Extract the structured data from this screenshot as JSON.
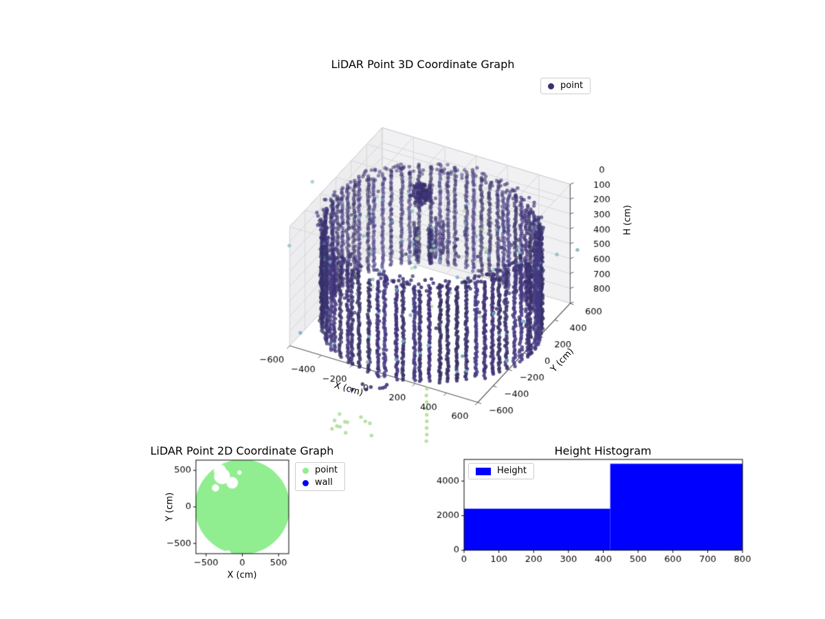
{
  "chart_data": [
    {
      "type": "scatter3d",
      "title": "LiDAR Point 3D Coordinate Graph",
      "xlabel": "X (cm)",
      "ylabel": "Y (cm)",
      "zlabel": "H (cm)",
      "xticks": [
        -600,
        -400,
        -200,
        0,
        200,
        400,
        600
      ],
      "yticks": [
        -600,
        -400,
        -200,
        0,
        200,
        400,
        600
      ],
      "zticks": [
        0,
        100,
        200,
        300,
        400,
        500,
        600,
        700,
        800
      ],
      "xlim": [
        -700,
        700
      ],
      "ylim": [
        -700,
        700
      ],
      "zlim": [
        800,
        0
      ],
      "z_axis_inverted": true,
      "legend": [
        {
          "label": "point",
          "color": "#3d2f75"
        }
      ],
      "point_cloud": {
        "description": "cylindrical LiDAR room scan, dense wall columns radius ~630 cm, heights 130-800 cm",
        "colors": {
          "dark": [
            "#3e2f77",
            "#39336e",
            "#443a82",
            "#353064"
          ],
          "teal": "#6fa8b8",
          "green": "#b5dfa0"
        },
        "wall": {
          "columns": 74,
          "radius": 627,
          "radius_wobble": 16,
          "h_top_min": 130,
          "h_top_jitter": 60,
          "h_bottom": 800,
          "h_step_min": 9,
          "h_step_max": 16,
          "xy_jitter": 7
        },
        "rim": {
          "count": 240,
          "r_min": 585,
          "r_max": 655,
          "h_min": 115,
          "h_max": 170
        },
        "cluster": {
          "cx": -240,
          "cy": 390,
          "sigma": 55,
          "count": 170,
          "h_min": 150,
          "h_max": 270
        },
        "interior_columns": {
          "count": 7,
          "x_min": -120,
          "x_max": 20,
          "y_min": 0,
          "y_max": 160,
          "h_start_min": 150,
          "h_start_max": 210,
          "h_end_min": 370,
          "h_end_max": 450,
          "h_step": 13
        },
        "sparse": {
          "count": 80,
          "r_max": 560,
          "h_min": 140,
          "h_max": 560
        },
        "teal_outliers": {
          "count": 20,
          "xy_min": -880,
          "xy_max": 880,
          "h_min": 100,
          "h_max": 650
        },
        "green_front": {
          "count": 12,
          "x_min": -60,
          "x_max": 230,
          "y_min": -1260,
          "y_max": -1060,
          "h_min": 790,
          "h_max": 820
        },
        "green_column": {
          "x": 420,
          "y": -900,
          "h_min": 600,
          "h_max": 950,
          "count": 9
        },
        "front_scatter": {
          "count": 8,
          "x_min": -100,
          "x_max": 200,
          "y_min": -900,
          "y_max": -700,
          "h_min": 780,
          "h_max": 820
        }
      }
    },
    {
      "type": "scatter",
      "title": "LiDAR Point 2D Coordinate Graph",
      "xlabel": "X (cm)",
      "ylabel": "Y (cm)",
      "xticks": [
        -500,
        0,
        500
      ],
      "yticks": [
        -500,
        0,
        500
      ],
      "xlim": [
        -640,
        640
      ],
      "ylim": [
        -640,
        640
      ],
      "legend": [
        {
          "label": "point",
          "color": "#90ee90"
        },
        {
          "label": "wall",
          "color": "#0000ff"
        }
      ],
      "blob": {
        "cx": 0,
        "cy": 0,
        "r": 655,
        "color": "#90ee90",
        "notches": [
          {
            "cx": -280,
            "cy": 420,
            "r": 110
          },
          {
            "cx": -140,
            "cy": 330,
            "r": 80
          },
          {
            "cx": -310,
            "cy": 500,
            "r": 85
          },
          {
            "cx": -370,
            "cy": 260,
            "r": 50
          },
          {
            "cx": -40,
            "cy": 470,
            "r": 30
          },
          {
            "cx": -200,
            "cy": -640,
            "r": 45
          }
        ]
      }
    },
    {
      "type": "bar",
      "title": "Height Histogram",
      "legend": [
        {
          "label": "Height",
          "color": "#0000ff"
        }
      ],
      "xticks": [
        0,
        100,
        200,
        300,
        400,
        500,
        600,
        700,
        800
      ],
      "yticks": [
        0,
        2000,
        4000
      ],
      "xlim": [
        0,
        800
      ],
      "ylim": [
        0,
        5250
      ],
      "bar_color": "#0000ff",
      "steps": [
        {
          "x0": 0,
          "x1": 420,
          "value": 2400
        },
        {
          "x0": 420,
          "x1": 800,
          "value": 5000
        }
      ]
    }
  ]
}
